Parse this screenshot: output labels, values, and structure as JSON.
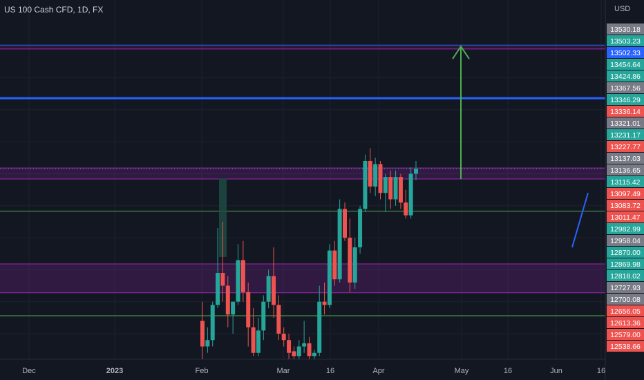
{
  "header": {
    "title": "US 100 Cash CFD, 1D, FX",
    "currency": "USD"
  },
  "colors": {
    "background": "#131722",
    "grid": "#1e222d",
    "up": "#26a69a",
    "down": "#ef5350",
    "purple": "#9c27b0",
    "blue": "#2962ff",
    "green": "#4caf50",
    "axis_text": "#b2b5be"
  },
  "chart_data": {
    "type": "candlestick",
    "title": "US 100 Cash CFD, 1D, FX",
    "xlabel": "",
    "ylabel": "",
    "ylim": [
      12520,
      13600
    ],
    "x_ticks": [
      "Dec",
      "2023",
      "Feb",
      "Mar",
      "16",
      "Apr",
      "May",
      "16",
      "Jun",
      "16"
    ],
    "price_labels": [
      {
        "value": "13530.18",
        "color": "#787b86"
      },
      {
        "value": "13503.23",
        "color": "#26a69a"
      },
      {
        "value": "13502.33",
        "color": "#2962ff"
      },
      {
        "value": "13454.64",
        "color": "#26a69a"
      },
      {
        "value": "13424.86",
        "color": "#26a69a"
      },
      {
        "value": "13367.56",
        "color": "#787b86"
      },
      {
        "value": "13346.29",
        "color": "#26a69a"
      },
      {
        "value": "13336.14",
        "color": "#ef5350"
      },
      {
        "value": "13321.01",
        "color": "#787b86"
      },
      {
        "value": "13231.17",
        "color": "#26a69a"
      },
      {
        "value": "13227.77",
        "color": "#ef5350"
      },
      {
        "value": "13137.03",
        "color": "#787b86"
      },
      {
        "value": "13136.65",
        "color": "#787b86"
      },
      {
        "value": "13115.42",
        "color": "#26a69a"
      },
      {
        "value": "13097.49",
        "color": "#ef5350"
      },
      {
        "value": "13083.72",
        "color": "#ef5350"
      },
      {
        "value": "13011.47",
        "color": "#ef5350"
      },
      {
        "value": "12982.99",
        "color": "#26a69a"
      },
      {
        "value": "12958.04",
        "color": "#787b86"
      },
      {
        "value": "12870.00",
        "color": "#26a69a"
      },
      {
        "value": "12869.98",
        "color": "#26a69a"
      },
      {
        "value": "12818.02",
        "color": "#26a69a"
      },
      {
        "value": "12727.93",
        "color": "#787b86"
      },
      {
        "value": "12700.08",
        "color": "#787b86"
      },
      {
        "value": "12656.05",
        "color": "#ef5350"
      },
      {
        "value": "12613.36",
        "color": "#ef5350"
      },
      {
        "value": "12579.00",
        "color": "#ef5350"
      },
      {
        "value": "12538.66",
        "color": "#ef5350"
      }
    ],
    "horizontal_levels": [
      {
        "value": 13502.33,
        "color": "#2962ff",
        "style": "thin"
      },
      {
        "value": 13490,
        "color": "#9c27b0",
        "style": "thin"
      },
      {
        "value": 13336.14,
        "color": "#2962ff",
        "style": "thick"
      },
      {
        "value": 12982.99,
        "color": "#4caf50",
        "style": "thin"
      },
      {
        "value": 12656.05,
        "color": "#4caf50",
        "style": "thin"
      }
    ],
    "zones": [
      {
        "from": 13083.72,
        "to": 13118,
        "color": "#9c27b0"
      },
      {
        "from": 12727.93,
        "to": 12818.02,
        "color": "#9c27b0"
      }
    ],
    "arrow": {
      "from_price": 13083.72,
      "to_price": 13502.33,
      "color": "#4caf50"
    },
    "candles": [
      {
        "o": 12640,
        "h": 12700,
        "l": 12520,
        "c": 12560
      },
      {
        "o": 12560,
        "h": 12620,
        "l": 12540,
        "c": 12580
      },
      {
        "o": 12580,
        "h": 12700,
        "l": 12560,
        "c": 12690
      },
      {
        "o": 12690,
        "h": 12930,
        "l": 12680,
        "c": 12790
      },
      {
        "o": 12790,
        "h": 12950,
        "l": 12700,
        "c": 12750
      },
      {
        "o": 12750,
        "h": 12780,
        "l": 12620,
        "c": 12660
      },
      {
        "o": 12660,
        "h": 12700,
        "l": 12600,
        "c": 12700
      },
      {
        "o": 12700,
        "h": 12880,
        "l": 12690,
        "c": 12830
      },
      {
        "o": 12830,
        "h": 12890,
        "l": 12700,
        "c": 12730
      },
      {
        "o": 12730,
        "h": 12760,
        "l": 12560,
        "c": 12620
      },
      {
        "o": 12620,
        "h": 12680,
        "l": 12530,
        "c": 12540
      },
      {
        "o": 12540,
        "h": 12650,
        "l": 12530,
        "c": 12610
      },
      {
        "o": 12610,
        "h": 12720,
        "l": 12580,
        "c": 12700
      },
      {
        "o": 12700,
        "h": 12800,
        "l": 12680,
        "c": 12780
      },
      {
        "o": 12780,
        "h": 12870,
        "l": 12650,
        "c": 12690
      },
      {
        "o": 12690,
        "h": 12720,
        "l": 12580,
        "c": 12600
      },
      {
        "o": 12600,
        "h": 12620,
        "l": 12560,
        "c": 12580
      },
      {
        "o": 12580,
        "h": 12600,
        "l": 12520,
        "c": 12540
      },
      {
        "o": 12545,
        "h": 12560,
        "l": 12520,
        "c": 12530
      },
      {
        "o": 12530,
        "h": 12580,
        "l": 12520,
        "c": 12560
      },
      {
        "o": 12560,
        "h": 12640,
        "l": 12540,
        "c": 12570
      },
      {
        "o": 12570,
        "h": 12590,
        "l": 12520,
        "c": 12530
      },
      {
        "o": 12530,
        "h": 12550,
        "l": 12520,
        "c": 12540
      },
      {
        "o": 12540,
        "h": 12750,
        "l": 12530,
        "c": 12700
      },
      {
        "o": 12700,
        "h": 12760,
        "l": 12660,
        "c": 12690
      },
      {
        "o": 12690,
        "h": 12880,
        "l": 12680,
        "c": 12860
      },
      {
        "o": 12860,
        "h": 12890,
        "l": 12750,
        "c": 12770
      },
      {
        "o": 12770,
        "h": 13020,
        "l": 12760,
        "c": 12990
      },
      {
        "o": 12990,
        "h": 13010,
        "l": 12890,
        "c": 12900
      },
      {
        "o": 12900,
        "h": 12960,
        "l": 12730,
        "c": 12760
      },
      {
        "o": 12760,
        "h": 12900,
        "l": 12740,
        "c": 12870
      },
      {
        "o": 12870,
        "h": 13000,
        "l": 12850,
        "c": 12990
      },
      {
        "o": 12990,
        "h": 13160,
        "l": 12980,
        "c": 13140
      },
      {
        "o": 13140,
        "h": 13180,
        "l": 13040,
        "c": 13060
      },
      {
        "o": 13060,
        "h": 13150,
        "l": 13030,
        "c": 13130
      },
      {
        "o": 13130,
        "h": 13140,
        "l": 13020,
        "c": 13040
      },
      {
        "o": 13040,
        "h": 13100,
        "l": 12980,
        "c": 13090
      },
      {
        "o": 13090,
        "h": 13110,
        "l": 12990,
        "c": 13020
      },
      {
        "o": 13020,
        "h": 13110,
        "l": 13000,
        "c": 13090
      },
      {
        "o": 13090,
        "h": 13100,
        "l": 12990,
        "c": 13010
      },
      {
        "o": 13010,
        "h": 13050,
        "l": 12960,
        "c": 12970
      },
      {
        "o": 12970,
        "h": 13120,
        "l": 12960,
        "c": 13100
      },
      {
        "o": 13100,
        "h": 13140,
        "l": 13080,
        "c": 13115
      }
    ]
  }
}
